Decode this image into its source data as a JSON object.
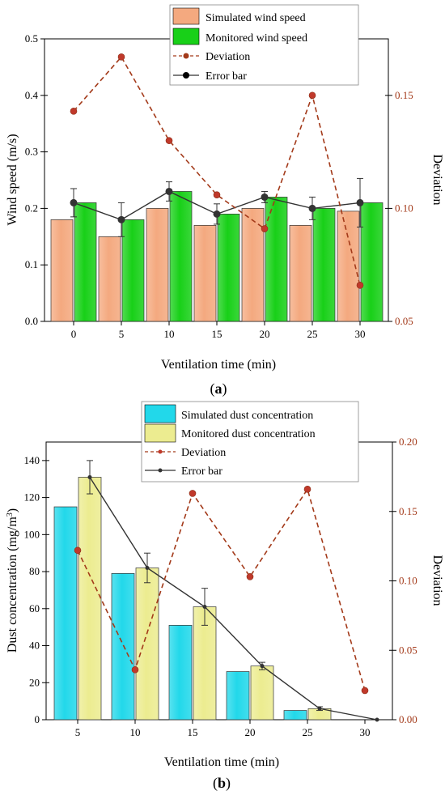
{
  "chart_data": [
    {
      "type": "bar",
      "panel_label": "(a)",
      "panel_letter": "a",
      "xlabel": "Ventilation time (min)",
      "ylabel": "Wind speed (m/s)",
      "y2label": "Deviation",
      "categories": [
        "0",
        "5",
        "10",
        "15",
        "20",
        "25",
        "30"
      ],
      "ylim": [
        0,
        0.5
      ],
      "yticks": [
        "0.0",
        "0.1",
        "0.2",
        "0.3",
        "0.4",
        "0.5"
      ],
      "y2lim": [
        0.05,
        0.175
      ],
      "y2ticks": [
        "0.05",
        "0.10",
        "0.15"
      ],
      "legend_position": "top-center",
      "series": [
        {
          "name": "Simulated wind speed",
          "kind": "bar",
          "color": "#f4a97f",
          "values": [
            0.18,
            0.15,
            0.2,
            0.17,
            0.2,
            0.17,
            0.195
          ]
        },
        {
          "name": "Monitored wind speed",
          "kind": "bar",
          "color": "#18d018",
          "values": [
            0.21,
            0.18,
            0.23,
            0.19,
            0.22,
            0.2,
            0.21
          ]
        },
        {
          "name": "Deviation",
          "kind": "line-dashed",
          "axis": "right",
          "color": "#a33a1a",
          "values": [
            0.143,
            0.167,
            0.13,
            0.106,
            0.091,
            0.15,
            0.066
          ]
        },
        {
          "name": "Error bar",
          "kind": "line",
          "color": "#333333",
          "values": [
            0.21,
            0.18,
            0.23,
            0.19,
            0.22,
            0.2,
            0.21
          ],
          "errors": [
            0.025,
            0.03,
            0.017,
            0.018,
            0.01,
            0.02,
            0.043
          ]
        }
      ]
    },
    {
      "type": "bar",
      "panel_label": "(b)",
      "panel_letter": "b",
      "xlabel": "Ventilation time (min)",
      "ylabel_main": "Dust concentration (mg/m",
      "ylabel_sup": "3",
      "ylabel_end": ")",
      "y2label": "Deviation",
      "categories": [
        "5",
        "10",
        "15",
        "20",
        "25",
        "30"
      ],
      "ylim": [
        0,
        150
      ],
      "yticks": [
        "0",
        "20",
        "40",
        "60",
        "80",
        "100",
        "120",
        "140"
      ],
      "y2lim": [
        0,
        0.2
      ],
      "y2ticks": [
        "0.00",
        "0.05",
        "0.10",
        "0.15",
        "0.20"
      ],
      "legend_position": "top-center",
      "series": [
        {
          "name": "Simulated dust concentration",
          "kind": "bar",
          "color": "#22d8ea",
          "values": [
            115,
            79,
            51,
            26,
            5,
            0
          ]
        },
        {
          "name": "Monitored dust concentration",
          "kind": "bar",
          "color": "#ecec90",
          "values": [
            131,
            82,
            61,
            29,
            6,
            0
          ]
        },
        {
          "name": "Deviation",
          "kind": "line-dashed",
          "axis": "right",
          "color": "#a33a1a",
          "values": [
            0.122,
            0.036,
            0.163,
            0.103,
            0.166,
            0.021
          ]
        },
        {
          "name": "Error bar",
          "kind": "line",
          "color": "#333333",
          "values": [
            131,
            82,
            61,
            29,
            6,
            0
          ],
          "errors": [
            9,
            8,
            10,
            2,
            1,
            0
          ]
        }
      ]
    }
  ]
}
